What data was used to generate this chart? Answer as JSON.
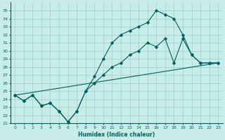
{
  "background_color": "#c8ece8",
  "grid_color": "#9dcfca",
  "line_color": "#006060",
  "xlim": [
    -0.5,
    23.5
  ],
  "ylim": [
    21,
    36
  ],
  "yticks": [
    21,
    22,
    23,
    24,
    25,
    26,
    27,
    28,
    29,
    30,
    31,
    32,
    33,
    34,
    35
  ],
  "xticks": [
    0,
    1,
    2,
    3,
    4,
    5,
    6,
    7,
    8,
    9,
    10,
    11,
    12,
    13,
    14,
    15,
    16,
    17,
    18,
    19,
    20,
    21,
    22,
    23
  ],
  "xlabel": "Humidex (Indice chaleur)",
  "line_diag": {
    "x": [
      0,
      23
    ],
    "y": [
      24.5,
      28.5
    ]
  },
  "line_low": {
    "x": [
      0,
      1,
      2,
      3,
      4,
      5,
      6,
      7,
      8,
      9,
      10,
      11,
      12,
      13,
      14,
      15,
      16,
      17,
      18,
      19,
      20,
      21,
      22,
      23
    ],
    "y": [
      24.5,
      23.8,
      24.5,
      23.2,
      23.5,
      22.5,
      21.2,
      22.5,
      25.0,
      26.0,
      27.0,
      28.0,
      28.5,
      29.5,
      30.0,
      31.0,
      30.5,
      31.5,
      28.5,
      31.5,
      29.5,
      28.5,
      28.5,
      28.5
    ]
  },
  "line_high": {
    "x": [
      0,
      1,
      2,
      3,
      4,
      5,
      6,
      7,
      8,
      9,
      10,
      11,
      12,
      13,
      14,
      15,
      16,
      17,
      18,
      19,
      20,
      21,
      22,
      23
    ],
    "y": [
      24.5,
      23.8,
      24.5,
      23.2,
      23.5,
      22.5,
      21.2,
      22.5,
      25.0,
      26.8,
      29.0,
      31.0,
      32.0,
      32.5,
      33.0,
      33.5,
      35.0,
      34.5,
      34.0,
      32.0,
      29.5,
      28.5,
      28.5,
      28.5
    ]
  }
}
